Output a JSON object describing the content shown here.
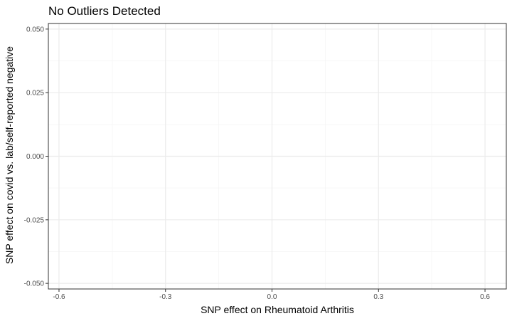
{
  "chart_data": {
    "type": "scatter",
    "title": "No Outliers Detected",
    "xlabel": "SNP effect on Rheumatoid Arthritis",
    "ylabel": "SNP effect on covid vs. lab/self-reported negative",
    "xlim": [
      -0.63,
      0.66
    ],
    "ylim": [
      -0.0522,
      0.0522
    ],
    "x_ticks": [
      -0.6,
      -0.3,
      0.0,
      0.3,
      0.6
    ],
    "x_tick_labels": [
      "-0.6",
      "-0.3",
      "0.0",
      "0.3",
      "0.6"
    ],
    "y_ticks": [
      0.05,
      0.025,
      0.0,
      -0.025,
      -0.05
    ],
    "y_tick_labels": [
      "0.050",
      "0.025",
      "0.000",
      "-0.025",
      "-0.050"
    ],
    "x_minor_ticks": [
      -0.45,
      -0.15,
      0.15,
      0.45
    ],
    "y_minor_ticks": [
      0.0375,
      0.0125,
      -0.0125,
      -0.0375
    ],
    "points": [],
    "grid": true,
    "theme": "bw",
    "colors": {
      "panel_border": "#333333",
      "grid_major": "#ebebeb",
      "grid_minor": "#f5f5f5",
      "tick": "#333333",
      "tick_text": "#4d4d4d"
    }
  }
}
